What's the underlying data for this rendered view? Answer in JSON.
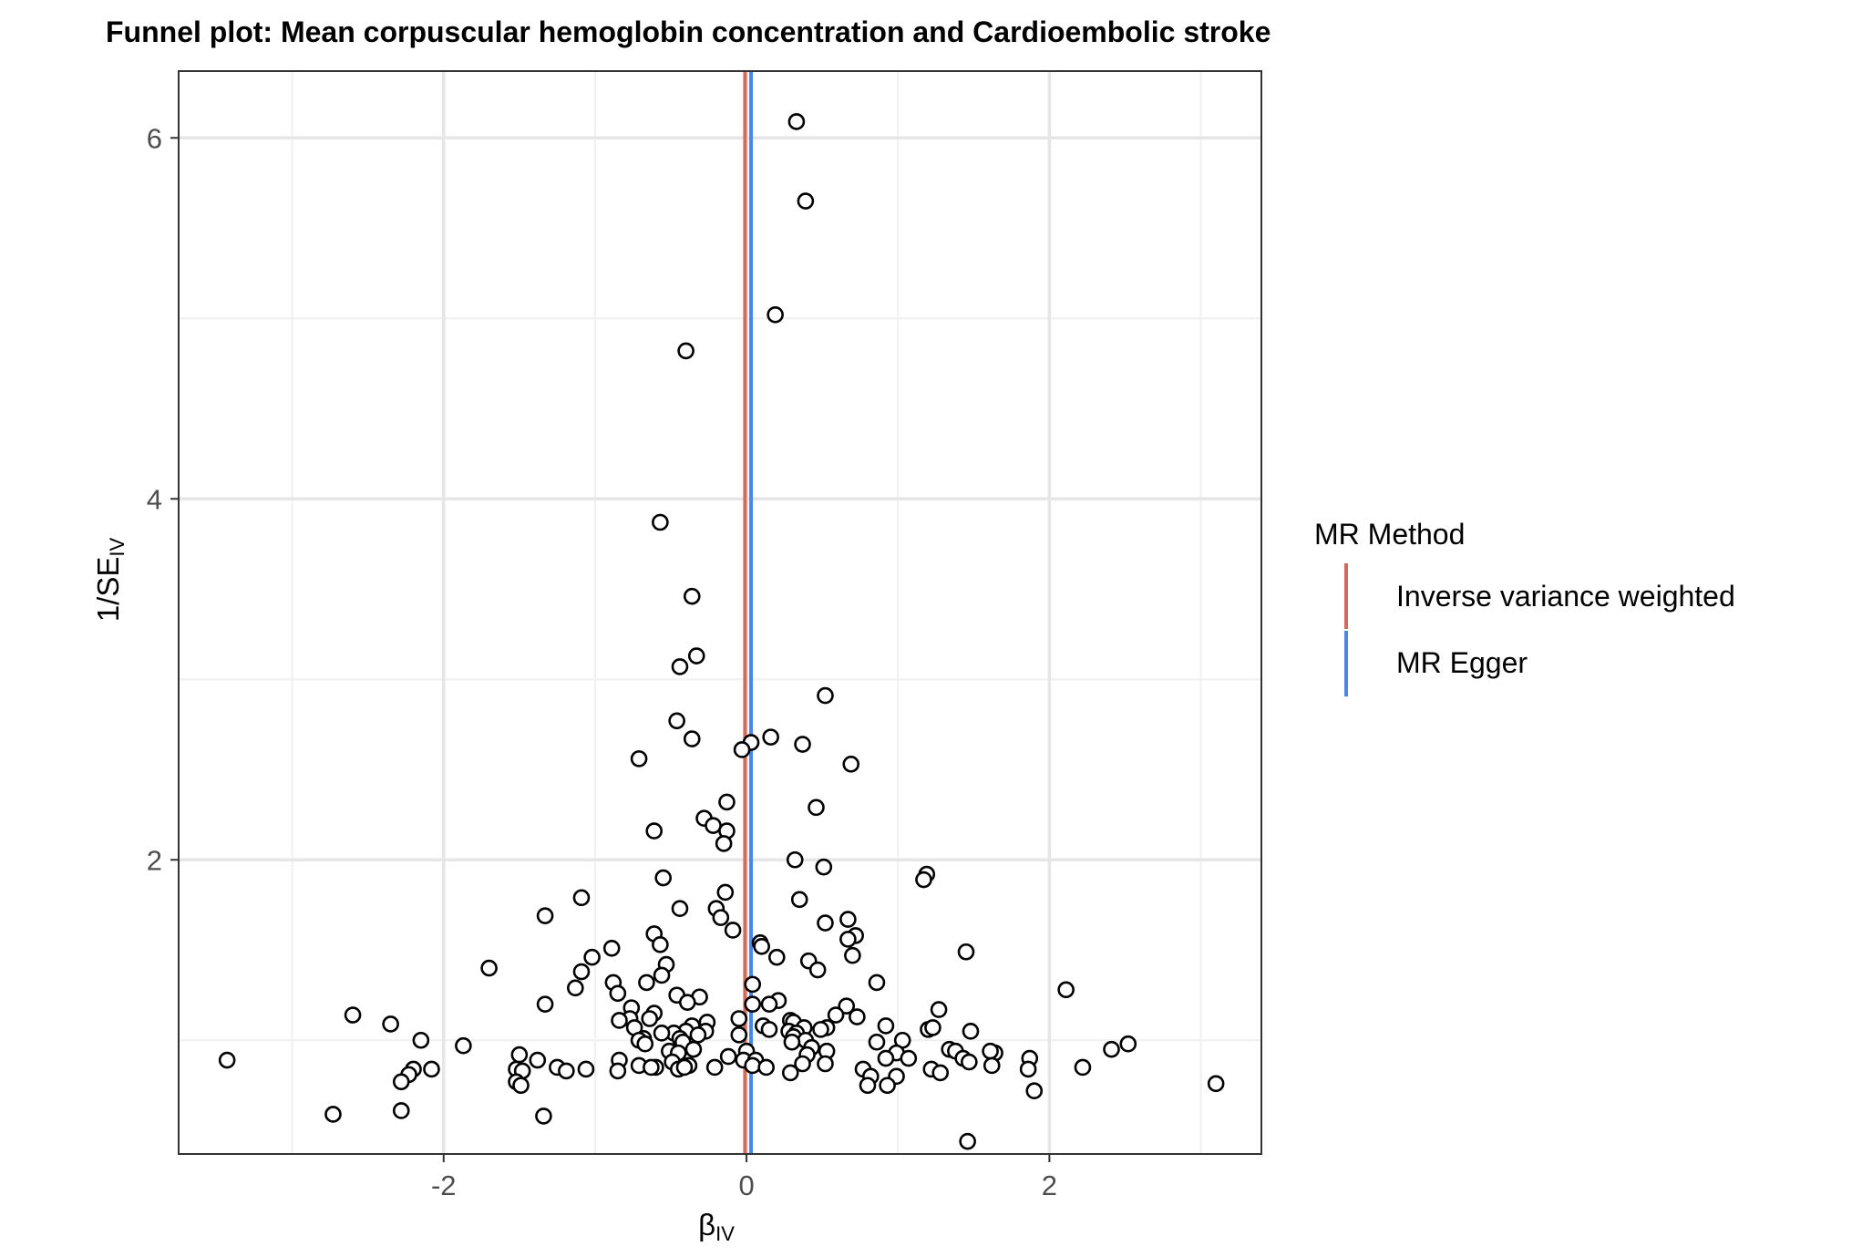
{
  "chart_data": {
    "type": "scatter",
    "title": "Funnel plot: Mean corpuscular hemoglobin concentration and Cardioembolic stroke",
    "xlabel": {
      "main": "β",
      "sub": "IV"
    },
    "ylabel": {
      "main": "1/SE",
      "sub": "IV"
    },
    "xlim": [
      -3.75,
      3.4
    ],
    "ylim": [
      0.37,
      6.37
    ],
    "x_ticks": [
      -2,
      0,
      2
    ],
    "x_tick_labels": [
      "-2",
      "0",
      "2"
    ],
    "y_ticks": [
      2,
      4,
      6
    ],
    "y_tick_labels": [
      "2",
      "4",
      "6"
    ],
    "x_minor_ticks": [
      -3,
      -1,
      1,
      3
    ],
    "y_minor_ticks": [
      1,
      3,
      5
    ],
    "grid": true,
    "legend": {
      "title": "MR Method",
      "position": "right",
      "entries": [
        {
          "label": "Inverse variance weighted",
          "color": "#d46a5b"
        },
        {
          "label": "MR Egger",
          "color": "#4a86e8"
        }
      ]
    },
    "lines": [
      {
        "method": "Inverse variance weighted",
        "x": -0.01,
        "color": "#d46a5b"
      },
      {
        "method": "MR Egger",
        "x": 0.03,
        "color": "#4a86e8"
      }
    ],
    "points": [
      [
        0.33,
        6.09
      ],
      [
        0.39,
        5.65
      ],
      [
        0.19,
        5.02
      ],
      [
        -0.4,
        4.82
      ],
      [
        -0.57,
        3.87
      ],
      [
        -0.36,
        3.46
      ],
      [
        -0.33,
        3.13
      ],
      [
        -0.44,
        3.07
      ],
      [
        0.52,
        2.91
      ],
      [
        -0.46,
        2.77
      ],
      [
        -0.36,
        2.67
      ],
      [
        0.16,
        2.68
      ],
      [
        0.03,
        2.65
      ],
      [
        -0.03,
        2.61
      ],
      [
        0.37,
        2.64
      ],
      [
        -0.71,
        2.56
      ],
      [
        0.69,
        2.53
      ],
      [
        -0.13,
        2.32
      ],
      [
        0.46,
        2.29
      ],
      [
        -0.28,
        2.23
      ],
      [
        -0.22,
        2.19
      ],
      [
        -0.61,
        2.16
      ],
      [
        -0.13,
        2.16
      ],
      [
        -0.15,
        2.09
      ],
      [
        0.32,
        2.0
      ],
      [
        0.51,
        1.96
      ],
      [
        1.19,
        1.92
      ],
      [
        1.17,
        1.89
      ],
      [
        -0.55,
        1.9
      ],
      [
        -0.14,
        1.82
      ],
      [
        -1.09,
        1.79
      ],
      [
        0.35,
        1.78
      ],
      [
        -0.44,
        1.73
      ],
      [
        -0.2,
        1.73
      ],
      [
        -1.33,
        1.69
      ],
      [
        -0.17,
        1.68
      ],
      [
        0.52,
        1.65
      ],
      [
        0.67,
        1.67
      ],
      [
        -0.09,
        1.61
      ],
      [
        -0.61,
        1.59
      ],
      [
        0.72,
        1.58
      ],
      [
        0.67,
        1.56
      ],
      [
        0.09,
        1.54
      ],
      [
        -0.57,
        1.53
      ],
      [
        0.1,
        1.52
      ],
      [
        -0.89,
        1.51
      ],
      [
        1.45,
        1.49
      ],
      [
        0.7,
        1.47
      ],
      [
        -1.02,
        1.46
      ],
      [
        0.2,
        1.46
      ],
      [
        0.41,
        1.44
      ],
      [
        -0.53,
        1.42
      ],
      [
        0.47,
        1.39
      ],
      [
        -1.7,
        1.4
      ],
      [
        -1.09,
        1.38
      ],
      [
        -0.56,
        1.36
      ],
      [
        -0.66,
        1.32
      ],
      [
        0.04,
        1.31
      ],
      [
        -0.88,
        1.32
      ],
      [
        0.86,
        1.32
      ],
      [
        -1.13,
        1.29
      ],
      [
        -0.85,
        1.26
      ],
      [
        2.11,
        1.28
      ],
      [
        -0.46,
        1.25
      ],
      [
        -0.31,
        1.24
      ],
      [
        0.21,
        1.22
      ],
      [
        -0.39,
        1.21
      ],
      [
        0.04,
        1.2
      ],
      [
        0.15,
        1.2
      ],
      [
        -1.33,
        1.2
      ],
      [
        0.66,
        1.19
      ],
      [
        -0.76,
        1.18
      ],
      [
        1.27,
        1.17
      ],
      [
        -2.6,
        1.14
      ],
      [
        -0.61,
        1.15
      ],
      [
        0.59,
        1.14
      ],
      [
        0.73,
        1.13
      ],
      [
        -0.77,
        1.12
      ],
      [
        -0.64,
        1.12
      ],
      [
        -0.05,
        1.12
      ],
      [
        -0.84,
        1.11
      ],
      [
        0.29,
        1.11
      ],
      [
        -0.26,
        1.1
      ],
      [
        0.31,
        1.1
      ],
      [
        -2.35,
        1.09
      ],
      [
        0.11,
        1.08
      ],
      [
        0.92,
        1.08
      ],
      [
        -0.36,
        1.08
      ],
      [
        -0.74,
        1.07
      ],
      [
        0.38,
        1.07
      ],
      [
        0.53,
        1.07
      ],
      [
        0.15,
        1.06
      ],
      [
        1.2,
        1.06
      ],
      [
        1.23,
        1.07
      ],
      [
        0.49,
        1.06
      ],
      [
        -0.4,
        1.05
      ],
      [
        -0.27,
        1.05
      ],
      [
        1.48,
        1.05
      ],
      [
        0.28,
        1.05
      ],
      [
        -0.48,
        1.04
      ],
      [
        -0.56,
        1.04
      ],
      [
        0.33,
        1.04
      ],
      [
        -0.32,
        1.03
      ],
      [
        -0.05,
        1.03
      ],
      [
        0.31,
        1.02
      ],
      [
        -2.15,
        1.0
      ],
      [
        -0.68,
        1.01
      ],
      [
        -0.44,
        1.01
      ],
      [
        -0.71,
        1.0
      ],
      [
        1.03,
        1.0
      ],
      [
        0.39,
        1.0
      ],
      [
        0.86,
        0.99
      ],
      [
        0.3,
        0.99
      ],
      [
        -0.42,
        0.99
      ],
      [
        -1.87,
        0.97
      ],
      [
        -0.67,
        0.98
      ],
      [
        2.52,
        0.98
      ],
      [
        2.41,
        0.95
      ],
      [
        1.34,
        0.95
      ],
      [
        0.0,
        0.94
      ],
      [
        0.43,
        0.96
      ],
      [
        1.38,
        0.94
      ],
      [
        -0.35,
        0.95
      ],
      [
        -0.51,
        0.94
      ],
      [
        0.53,
        0.94
      ],
      [
        1.64,
        0.93
      ],
      [
        0.99,
        0.93
      ],
      [
        1.61,
        0.94
      ],
      [
        -0.45,
        0.93
      ],
      [
        -0.12,
        0.91
      ],
      [
        0.4,
        0.92
      ],
      [
        -1.5,
        0.92
      ],
      [
        1.07,
        0.9
      ],
      [
        0.92,
        0.9
      ],
      [
        1.43,
        0.9
      ],
      [
        -3.43,
        0.89
      ],
      [
        1.87,
        0.9
      ],
      [
        -1.38,
        0.89
      ],
      [
        -0.84,
        0.89
      ],
      [
        -0.49,
        0.88
      ],
      [
        -0.02,
        0.89
      ],
      [
        0.06,
        0.89
      ],
      [
        0.04,
        0.86
      ],
      [
        0.37,
        0.87
      ],
      [
        0.52,
        0.87
      ],
      [
        1.47,
        0.88
      ],
      [
        -0.71,
        0.86
      ],
      [
        -0.38,
        0.86
      ],
      [
        1.62,
        0.86
      ],
      [
        -0.6,
        0.85
      ],
      [
        0.13,
        0.85
      ],
      [
        -0.21,
        0.85
      ],
      [
        -0.45,
        0.84
      ],
      [
        -0.41,
        0.85
      ],
      [
        2.22,
        0.85
      ],
      [
        -1.25,
        0.85
      ],
      [
        -1.19,
        0.83
      ],
      [
        -2.2,
        0.84
      ],
      [
        -1.06,
        0.84
      ],
      [
        -0.63,
        0.85
      ],
      [
        -0.85,
        0.83
      ],
      [
        -1.52,
        0.84
      ],
      [
        -1.48,
        0.83
      ],
      [
        -2.08,
        0.84
      ],
      [
        1.22,
        0.84
      ],
      [
        0.29,
        0.82
      ],
      [
        0.77,
        0.84
      ],
      [
        1.86,
        0.84
      ],
      [
        -2.23,
        0.81
      ],
      [
        0.82,
        0.8
      ],
      [
        1.28,
        0.82
      ],
      [
        0.99,
        0.8
      ],
      [
        -2.28,
        0.77
      ],
      [
        -1.52,
        0.77
      ],
      [
        -1.49,
        0.75
      ],
      [
        0.8,
        0.75
      ],
      [
        0.93,
        0.75
      ],
      [
        3.1,
        0.76
      ],
      [
        1.9,
        0.72
      ],
      [
        -2.73,
        0.59
      ],
      [
        -2.28,
        0.61
      ],
      [
        -1.34,
        0.58
      ],
      [
        1.46,
        0.44
      ]
    ]
  }
}
